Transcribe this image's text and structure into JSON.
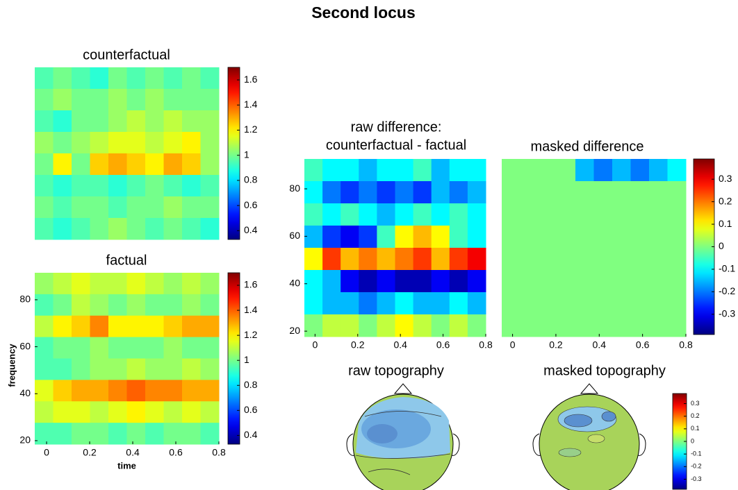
{
  "title": "Second locus",
  "chart_data": [
    {
      "type": "heatmap",
      "title": [
        "counterfactual"
      ],
      "colormap": "jet",
      "colorbar": true,
      "clim": [
        0.33,
        1.7
      ],
      "cticks": [
        0.4,
        0.6,
        0.8,
        1,
        1.2,
        1.4,
        1.6
      ],
      "z": [
        [
          0.95,
          1.0,
          0.95,
          0.9,
          1.0,
          0.95,
          1.0,
          0.95,
          1.0,
          0.95
        ],
        [
          1.0,
          1.05,
          1.0,
          1.0,
          1.05,
          1.0,
          1.05,
          1.0,
          1.0,
          1.0
        ],
        [
          0.95,
          0.9,
          1.0,
          1.0,
          1.05,
          1.1,
          1.05,
          1.1,
          1.05,
          1.05
        ],
        [
          1.05,
          1.0,
          1.05,
          1.1,
          1.15,
          1.15,
          1.1,
          1.15,
          1.2,
          1.05
        ],
        [
          1.0,
          1.2,
          1.0,
          1.25,
          1.3,
          1.25,
          1.2,
          1.3,
          1.25,
          1.05
        ],
        [
          0.95,
          0.9,
          0.95,
          0.95,
          0.9,
          0.95,
          1.0,
          0.95,
          0.9,
          0.95
        ],
        [
          1.0,
          0.95,
          1.0,
          1.0,
          0.95,
          1.0,
          1.0,
          1.05,
          1.0,
          1.0
        ],
        [
          0.95,
          0.9,
          0.95,
          1.0,
          1.05,
          1.0,
          0.95,
          1.0,
          0.95,
          0.9
        ]
      ]
    },
    {
      "type": "heatmap",
      "title": [
        "factual"
      ],
      "colormap": "jet",
      "colorbar": true,
      "xlabel": "time",
      "ylabel": "frequency",
      "xlim": [
        -0.055,
        0.8
      ],
      "xticks": [
        0,
        0.2,
        0.4,
        0.6,
        0.8
      ],
      "ylim": [
        18.5,
        91.5
      ],
      "yticks": [
        20,
        40,
        60,
        80
      ],
      "clim": [
        0.33,
        1.7
      ],
      "cticks": [
        0.4,
        0.6,
        0.8,
        1,
        1.2,
        1.4,
        1.6
      ],
      "z": [
        [
          1.05,
          1.1,
          1.15,
          1.1,
          1.1,
          1.15,
          1.1,
          1.05,
          1.1,
          1.05
        ],
        [
          0.95,
          1.0,
          1.1,
          1.05,
          1.0,
          1.05,
          1.0,
          1.0,
          1.05,
          1.0
        ],
        [
          1.1,
          1.2,
          1.25,
          1.35,
          1.2,
          1.2,
          1.2,
          1.25,
          1.3,
          1.3
        ],
        [
          0.95,
          1.0,
          1.0,
          1.05,
          1.0,
          1.0,
          1.0,
          1.05,
          1.0,
          1.0
        ],
        [
          0.95,
          0.95,
          1.0,
          1.05,
          1.05,
          1.1,
          1.05,
          1.05,
          1.1,
          1.05
        ],
        [
          1.15,
          1.25,
          1.3,
          1.3,
          1.35,
          1.4,
          1.35,
          1.35,
          1.3,
          1.3
        ],
        [
          1.1,
          1.15,
          1.15,
          1.1,
          1.15,
          1.2,
          1.15,
          1.1,
          1.15,
          1.1
        ],
        [
          0.95,
          0.95,
          1.0,
          1.0,
          0.95,
          1.0,
          0.95,
          1.0,
          1.0,
          0.95
        ]
      ]
    },
    {
      "type": "heatmap",
      "title": [
        "raw difference:",
        "counterfactual - factual"
      ],
      "colormap": "jet",
      "colorbar": false,
      "xlim": [
        -0.05,
        0.8
      ],
      "xticks": [
        0,
        0.2,
        0.4,
        0.6,
        0.8
      ],
      "ylim": [
        17.7,
        92.6
      ],
      "yticks": [
        20,
        40,
        60,
        80
      ],
      "clim": [
        -0.39,
        0.39
      ],
      "z": [
        [
          -0.05,
          -0.1,
          -0.1,
          -0.15,
          -0.1,
          -0.1,
          -0.05,
          -0.15,
          -0.1,
          -0.1
        ],
        [
          -0.1,
          -0.2,
          -0.25,
          -0.2,
          -0.25,
          -0.2,
          -0.25,
          -0.15,
          -0.2,
          -0.15
        ],
        [
          -0.05,
          -0.1,
          -0.05,
          -0.1,
          -0.15,
          -0.1,
          -0.05,
          -0.1,
          -0.05,
          -0.1
        ],
        [
          -0.15,
          -0.25,
          -0.3,
          -0.25,
          -0.05,
          0.1,
          0.15,
          0.1,
          -0.05,
          -0.1
        ],
        [
          0.1,
          0.25,
          0.15,
          0.2,
          0.15,
          0.2,
          0.25,
          0.15,
          0.25,
          0.3
        ],
        [
          -0.1,
          -0.15,
          -0.3,
          -0.35,
          -0.3,
          -0.35,
          -0.35,
          -0.3,
          -0.35,
          -0.3
        ],
        [
          -0.1,
          -0.15,
          -0.15,
          -0.2,
          -0.15,
          -0.1,
          -0.15,
          -0.15,
          -0.1,
          -0.15
        ],
        [
          0.0,
          0.05,
          0.05,
          0.0,
          0.05,
          0.1,
          0.05,
          0.0,
          0.05,
          0.0
        ]
      ]
    },
    {
      "type": "heatmap",
      "title": [
        "masked difference"
      ],
      "colormap": "jet",
      "colorbar": true,
      "xlim": [
        -0.05,
        0.8
      ],
      "xticks": [
        0,
        0.2,
        0.4,
        0.6,
        0.8
      ],
      "clim": [
        -0.39,
        0.39
      ],
      "cticks": [
        -0.3,
        -0.2,
        -0.1,
        0,
        0.1,
        0.2,
        0.3
      ],
      "z": [
        [
          0,
          0,
          0,
          0,
          -0.15,
          -0.2,
          -0.15,
          -0.2,
          -0.15,
          -0.1
        ],
        [
          0,
          0,
          0,
          0,
          0,
          0,
          0,
          0,
          0,
          0
        ],
        [
          0,
          0,
          0,
          0,
          0,
          0,
          0,
          0,
          0,
          0
        ],
        [
          0,
          0,
          0,
          0,
          0,
          0,
          0,
          0,
          0,
          0
        ],
        [
          0,
          0,
          0,
          0,
          0,
          0,
          0,
          0,
          0,
          0
        ],
        [
          0,
          0,
          0,
          0,
          0,
          0,
          0,
          0,
          0,
          0
        ],
        [
          0,
          0,
          0,
          0,
          0,
          0,
          0,
          0,
          0,
          0
        ],
        [
          0,
          0,
          0,
          0,
          0,
          0,
          0,
          0,
          0,
          0
        ]
      ]
    },
    {
      "type": "topomap",
      "title": [
        "raw topography"
      ],
      "colormap": "jet",
      "colorbar": false,
      "clim": [
        -0.38,
        0.38
      ]
    },
    {
      "type": "topomap",
      "title": [
        "masked topography"
      ],
      "colormap": "jet",
      "colorbar": true,
      "clim": [
        -0.38,
        0.38
      ],
      "cticks": [
        -0.3,
        -0.2,
        -0.1,
        0,
        0.1,
        0.2,
        0.3
      ]
    }
  ]
}
